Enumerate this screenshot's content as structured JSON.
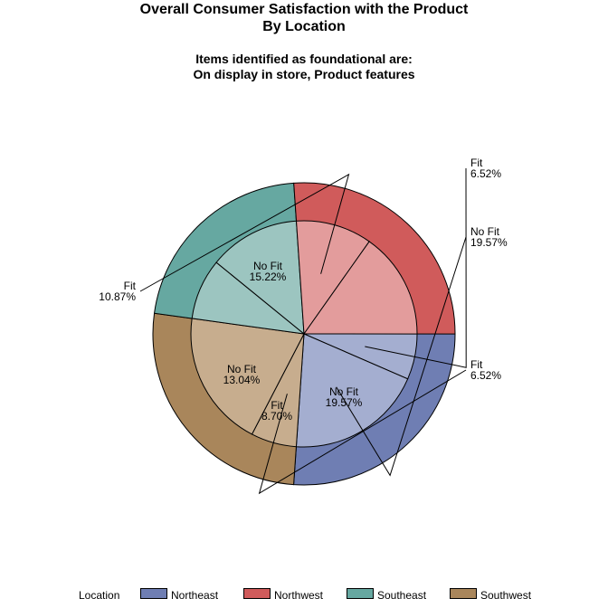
{
  "title_line1": "Overall Consumer Satisfaction with the Product",
  "title_line2": "By Location",
  "subtitle_line1": "Items identified as foundational are:",
  "subtitle_line2": "On display in store, Product features",
  "legend": {
    "title": "Location",
    "items": [
      {
        "label": "Northeast",
        "color": "#6f7eb3"
      },
      {
        "label": "Northwest",
        "color": "#d05b5b"
      },
      {
        "label": "Southeast",
        "color": "#66a8a1"
      },
      {
        "label": "Southwest",
        "color": "#a9865b"
      }
    ]
  },
  "chart_data": {
    "type": "pie",
    "style": "nested donut (outer ring = Location, inner pie = Fit / No Fit)",
    "outer_ring": [
      {
        "location": "Northeast",
        "percent": 26.09,
        "color": "#6f7eb3"
      },
      {
        "location": "Southwest",
        "percent": 26.09,
        "color": "#a9865b"
      },
      {
        "location": "Southeast",
        "percent": 21.74,
        "color": "#66a8a1"
      },
      {
        "location": "Northwest",
        "percent": 26.09,
        "color": "#d05b5b"
      }
    ],
    "inner_pie": [
      {
        "location": "Northeast",
        "group": "Fit",
        "percent": 6.52,
        "label": "Fit\n6.52%",
        "color": "#a4aed0",
        "label_outside": true
      },
      {
        "location": "Northeast",
        "group": "No Fit",
        "percent": 19.57,
        "label": "No Fit\n19.57%",
        "color": "#a4aed0",
        "label_outside": true
      },
      {
        "location": "Southwest",
        "group": "Fit",
        "percent": 6.52,
        "label": "Fit\n6.52%",
        "color": "#c7ad8e",
        "label_outside": true
      },
      {
        "location": "Southwest",
        "group": "No Fit",
        "percent": 19.57,
        "label": "No Fit\n19.57%",
        "color": "#c7ad8e",
        "label_outside": false
      },
      {
        "location": "Southeast",
        "group": "Fit",
        "percent": 8.7,
        "label": "Fit\n8.70%",
        "color": "#9cc5c0",
        "label_outside": false
      },
      {
        "location": "Southeast",
        "group": "No Fit",
        "percent": 13.04,
        "label": "No Fit\n13.04%",
        "color": "#9cc5c0",
        "label_outside": false
      },
      {
        "location": "Northwest",
        "group": "Fit",
        "percent": 10.87,
        "label": "Fit\n10.87%",
        "color": "#e39c9c",
        "label_outside": true
      },
      {
        "location": "Northwest",
        "group": "No Fit",
        "percent": 15.22,
        "label": "No Fit\n15.22%",
        "color": "#e39c9c",
        "label_outside": false
      }
    ],
    "start_angle_deg": 90,
    "direction": "clockwise"
  }
}
